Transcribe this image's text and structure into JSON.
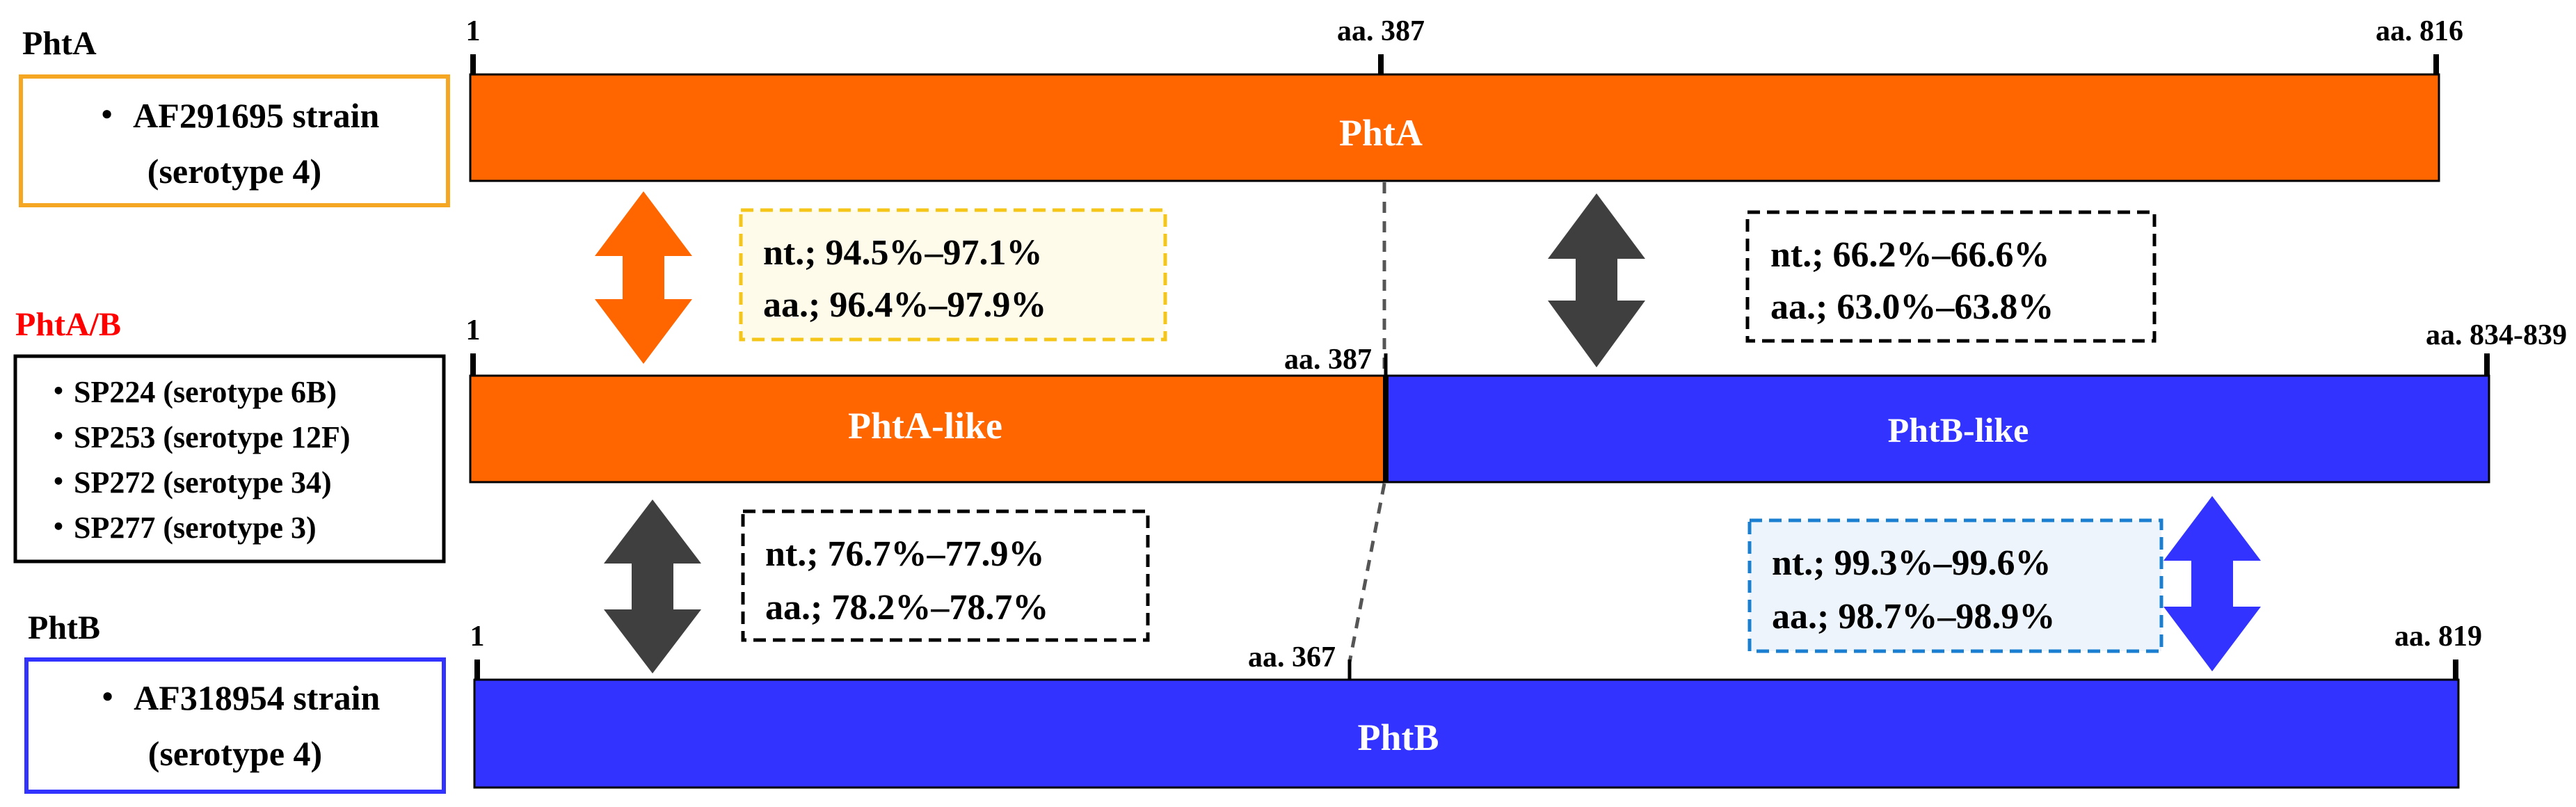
{
  "groups": {
    "phtA": {
      "title": "PhtA",
      "strains": [
        "・ AF291695 strain",
        "(serotype 4)"
      ]
    },
    "phtAB": {
      "title": "PhtA/B",
      "strains": [
        "・SP224 (serotype 6B)",
        "・SP253 (serotype 12F)",
        "・SP272 (serotype 34)",
        "・SP277 (serotype 3)"
      ]
    },
    "phtB": {
      "title": "PhtB",
      "strains": [
        "・ AF318954 strain",
        "(serotype 4)"
      ]
    }
  },
  "bars": {
    "phtA": {
      "label": "PhtA",
      "start_label": "1",
      "mid_label": "aa. 387",
      "end_label": "aa. 816",
      "length_aa": 816,
      "split_aa": 387
    },
    "phtAB": {
      "start_label": "1",
      "mid_label": "aa. 387",
      "end_label": "aa. 834-839",
      "segments": [
        {
          "label": "PhtA-like"
        },
        {
          "label": "PhtB-like"
        }
      ],
      "length_aa": 839,
      "split_aa": 387
    },
    "phtB": {
      "label": "PhtB",
      "start_label": "1",
      "mid_label": "aa. 367",
      "end_label": "aa. 819",
      "length_aa": 819,
      "split_aa": 367
    }
  },
  "identity": {
    "phtA_vs_phtA_like": {
      "nt": "nt.; 94.5%–97.1%",
      "aa": "aa.; 96.4%–97.9%"
    },
    "phtA_vs_phtB_like": {
      "nt": "nt.; 66.2%–66.6%",
      "aa": "aa.; 63.0%–63.8%"
    },
    "phtA_like_vs_phtB": {
      "nt": "nt.; 76.7%–77.9%",
      "aa": "aa.; 78.2%–78.7%"
    },
    "phtB_like_vs_phtB": {
      "nt": "nt.; 99.3%–99.6%",
      "aa": "aa.; 98.7%–98.9%"
    }
  },
  "colors": {
    "phtA": "#ff6600",
    "phtB": "#3333ff",
    "phtAB_title": "#ff0000",
    "phtA_box_border": "#f5a623",
    "phtB_box_border": "#3333ff",
    "dark_arrow": "#3f3f3f",
    "yellow_box_border": "#f5c518",
    "yellow_box_fill": "#fffbea",
    "blue_box_border": "#1a7fd0",
    "blue_box_fill": "#eef4fb"
  },
  "icons": {
    "similar_high_a": "double-arrow-orange-icon",
    "similar_low": "double-arrow-dark-icon",
    "similar_high_b": "double-arrow-blue-icon"
  }
}
